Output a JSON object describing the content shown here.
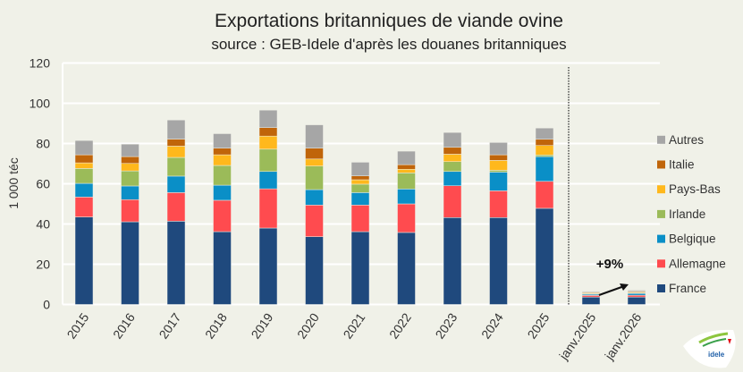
{
  "chart_data": {
    "type": "bar",
    "stacked": true,
    "title": "Exportations britanniques de viande ovine",
    "subtitle": "source : GEB-Idele d'après les douanes britanniques",
    "xlabel": "",
    "ylabel": "1 000 téc",
    "ylim": [
      0,
      120
    ],
    "yticks": [
      0,
      20,
      40,
      60,
      80,
      100,
      120
    ],
    "grid": true,
    "legend_position": "right",
    "categories": [
      "2015",
      "2016",
      "2017",
      "2018",
      "2019",
      "2020",
      "2021",
      "2022",
      "2023",
      "2024",
      "2025",
      "janv.2025",
      "janv.2026"
    ],
    "series": [
      {
        "name": "France",
        "color": "#1f497d",
        "values": [
          43.5,
          41.1,
          41.4,
          36.2,
          38.0,
          33.7,
          36.2,
          35.8,
          43.2,
          43.2,
          47.8,
          3.7,
          3.7
        ]
      },
      {
        "name": "Allemagne",
        "color": "#ff4b4f",
        "values": [
          9.9,
          11.0,
          14.2,
          15.6,
          19.5,
          15.7,
          13.2,
          14.2,
          15.8,
          13.3,
          13.4,
          0.8,
          0.9
        ]
      },
      {
        "name": "Belgique",
        "color": "#0a8fc7",
        "values": [
          6.8,
          6.8,
          8.2,
          7.5,
          8.6,
          7.7,
          6.2,
          7.4,
          7.1,
          9.3,
          12.3,
          0.6,
          0.9
        ]
      },
      {
        "name": "Irlande",
        "color": "#9bbb59",
        "values": [
          7.4,
          7.5,
          9.3,
          9.8,
          11.1,
          11.7,
          4.2,
          8.0,
          4.9,
          0.9,
          0.8,
          0.3,
          0.3
        ]
      },
      {
        "name": "Pays-Bas",
        "color": "#ffb81c",
        "values": [
          2.8,
          3.7,
          5.6,
          5.3,
          6.5,
          3.5,
          2.2,
          1.8,
          3.7,
          4.9,
          4.7,
          0.4,
          0.4
        ]
      },
      {
        "name": "Italie",
        "color": "#c0650a",
        "values": [
          4.0,
          3.4,
          3.5,
          3.3,
          4.2,
          5.4,
          1.9,
          2.3,
          3.4,
          2.8,
          3.1,
          0.3,
          0.4
        ]
      },
      {
        "name": "Autres",
        "color": "#a6a6a6",
        "values": [
          7.1,
          6.2,
          9.5,
          7.2,
          8.7,
          11.6,
          6.8,
          6.7,
          7.4,
          6.1,
          5.6,
          0.4,
          0.5
        ]
      }
    ],
    "annotations": [
      {
        "text": "+9%",
        "from": "janv.2025",
        "to": "janv.2026"
      }
    ]
  },
  "logo": {
    "text": "idele"
  }
}
